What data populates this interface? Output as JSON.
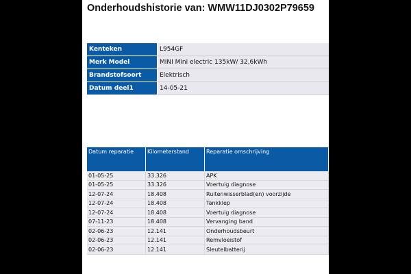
{
  "title": "Onderhoudshistorie van: WMW11DJ0302P79659",
  "vehicle_info": [
    {
      "label": "Kenteken",
      "value": "L954GF"
    },
    {
      "label": "Merk Model",
      "value": "MINI Mini electric 135kW/ 32,6kWh"
    },
    {
      "label": "Brandstofsoort",
      "value": "Elektrisch"
    },
    {
      "label": "Datum deel1",
      "value": "14-05-21"
    }
  ],
  "repairs": {
    "headers": [
      "Datum reparatie",
      "Kilometerstand",
      "Reparatie omschrijving"
    ],
    "rows": [
      [
        "01-05-25",
        "33.326",
        "APK"
      ],
      [
        "01-05-25",
        "33.326",
        "Voertuig diagnose"
      ],
      [
        "12-07-24",
        "18.408",
        "Ruitenwisserblad(en) voorzijde"
      ],
      [
        "12-07-24",
        "18.408",
        "Tankklep"
      ],
      [
        "12-07-24",
        "18.408",
        "Voertuig diagnose"
      ],
      [
        "07-11-23",
        "18.408",
        "Vervanging band"
      ],
      [
        "02-06-23",
        "12.141",
        "Onderhoudsbeurt"
      ],
      [
        "02-06-23",
        "12.141",
        "Remvloeistof"
      ],
      [
        "02-06-23",
        "12.141",
        "Sleutelbatterij"
      ]
    ]
  },
  "colors": {
    "header_blue": "#0b5aa6",
    "row_gray": "#ebebf0"
  }
}
